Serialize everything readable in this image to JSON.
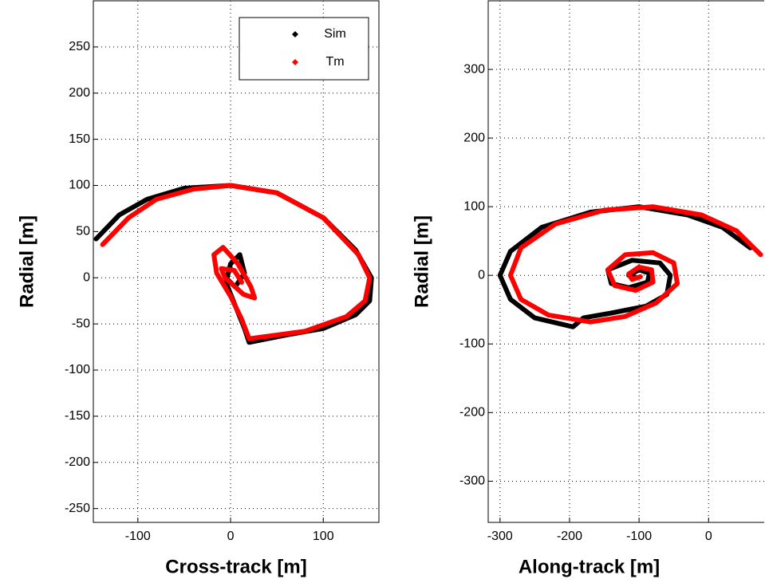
{
  "chart_data": [
    {
      "type": "line",
      "x_label": "Cross-track [m]",
      "y_label": "Radial [m]",
      "xlim": [
        -148,
        160
      ],
      "ylim": [
        -265,
        300
      ],
      "xticks": [
        -100,
        0,
        100
      ],
      "yticks": [
        -250,
        -200,
        -150,
        -100,
        -50,
        0,
        50,
        100,
        150,
        200,
        250
      ],
      "grid": true,
      "legend": "upper right",
      "series": [
        {
          "name": "Sim",
          "color": "#000000",
          "x": [
            -145,
            -120,
            -90,
            -50,
            0,
            50,
            100,
            135,
            152,
            150,
            135,
            100,
            60,
            20,
            15,
            5,
            -5,
            0,
            10,
            15,
            5,
            -5,
            0
          ],
          "y": [
            42,
            68,
            85,
            97,
            100,
            92,
            65,
            30,
            0,
            -25,
            -40,
            -55,
            -62,
            -70,
            -55,
            -30,
            -5,
            15,
            25,
            5,
            -10,
            0,
            10
          ]
        },
        {
          "name": "Tm",
          "color": "#ff0000",
          "x": [
            -138,
            -110,
            -80,
            -40,
            0,
            50,
            100,
            138,
            150,
            145,
            125,
            80,
            20,
            12,
            0,
            -15,
            -18,
            -8,
            8,
            22,
            26,
            14,
            -6,
            -10,
            4,
            12
          ],
          "y": [
            36,
            65,
            85,
            96,
            100,
            92,
            65,
            25,
            0,
            -25,
            -42,
            -58,
            -66,
            -45,
            -20,
            5,
            25,
            33,
            15,
            -10,
            -22,
            -18,
            0,
            10,
            8,
            -5
          ]
        }
      ]
    },
    {
      "type": "line",
      "x_label": "Along-track [m]",
      "y_label": "Radial [m]",
      "xlim": [
        -317,
        80
      ],
      "ylim": [
        -360,
        400
      ],
      "xticks": [
        -300,
        -200,
        -100,
        0
      ],
      "yticks": [
        -300,
        -200,
        -100,
        0,
        100,
        200,
        300
      ],
      "grid": true,
      "series": [
        {
          "name": "Sim",
          "color": "#000000",
          "x": [
            60,
            20,
            -30,
            -100,
            -170,
            -240,
            -285,
            -300,
            -285,
            -250,
            -195,
            -180,
            -140,
            -90,
            -60,
            -55,
            -70,
            -110,
            -145,
            -140,
            -115,
            -88,
            -85,
            -100,
            -115,
            -105
          ],
          "y": [
            40,
            70,
            88,
            100,
            92,
            70,
            35,
            0,
            -35,
            -62,
            -75,
            -62,
            -55,
            -45,
            -28,
            0,
            18,
            22,
            8,
            -12,
            -18,
            -10,
            3,
            8,
            0,
            -3
          ]
        },
        {
          "name": "Tm",
          "color": "#ff0000",
          "x": [
            75,
            40,
            -10,
            -80,
            -150,
            -220,
            -270,
            -285,
            -270,
            -230,
            -170,
            -120,
            -75,
            -45,
            -50,
            -80,
            -120,
            -145,
            -135,
            -105,
            -80,
            -82,
            -100,
            -115,
            -110,
            -98
          ],
          "y": [
            30,
            65,
            88,
            100,
            95,
            75,
            40,
            0,
            -35,
            -58,
            -68,
            -60,
            -40,
            -12,
            18,
            33,
            30,
            8,
            -15,
            -22,
            -10,
            8,
            12,
            2,
            -6,
            -2
          ]
        }
      ]
    }
  ]
}
